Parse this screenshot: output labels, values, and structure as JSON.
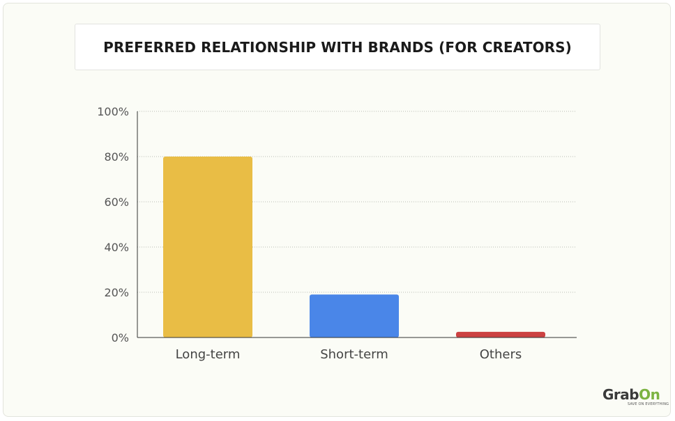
{
  "chart_data": {
    "type": "bar",
    "title": "PREFERRED RELATIONSHIP WITH BRANDS (FOR CREATORS)",
    "xlabel": "",
    "ylabel": "",
    "categories": [
      "Long-term",
      "Short-term",
      "Others"
    ],
    "values": [
      80,
      19,
      2.5
    ],
    "colors": [
      "#e9bd45",
      "#4a86e8",
      "#cc4242"
    ],
    "ylim": [
      0,
      100
    ],
    "yticks": [
      0,
      20,
      40,
      60,
      80,
      100
    ],
    "ytick_labels": [
      "0%",
      "20%",
      "40%",
      "60%",
      "80%",
      "100%"
    ],
    "grid": true,
    "legend": "none"
  },
  "logo": {
    "text_main": "Grab",
    "text_accent": "On",
    "tagline": "SAVE ON EVERYTHING",
    "accent_color": "#7cb342"
  }
}
